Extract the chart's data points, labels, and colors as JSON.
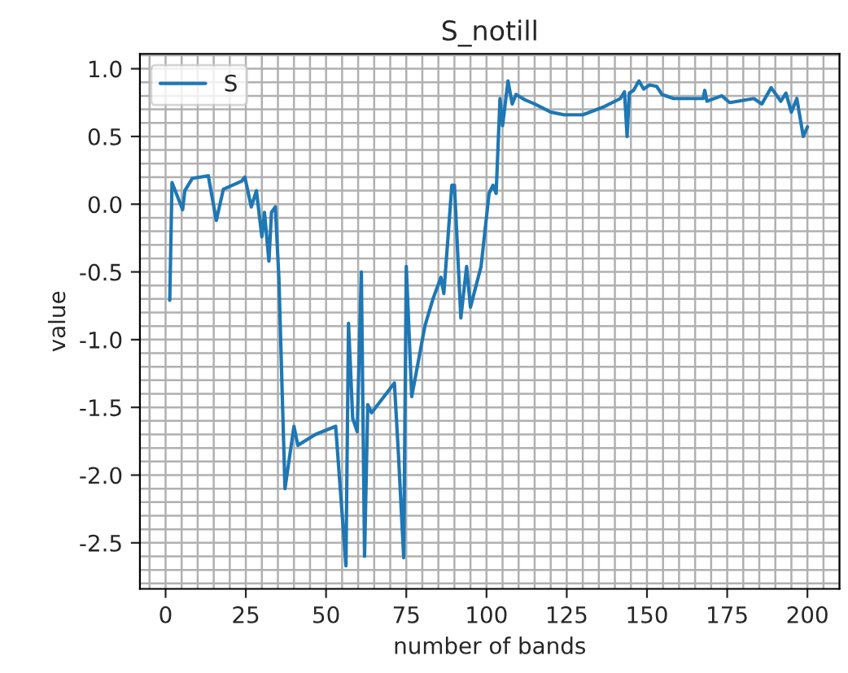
{
  "chart_data": {
    "type": "line",
    "title": "S_notill",
    "xlabel": "number of bands",
    "ylabel": "value",
    "xlim": [
      -8,
      210
    ],
    "ylim": [
      -2.84,
      1.11
    ],
    "xticks": [
      0,
      25,
      50,
      75,
      100,
      125,
      150,
      175,
      200
    ],
    "yticks": [
      -2.5,
      {
        "value": -2,
        "label": "-2.0"
      },
      -1.5,
      {
        "value": -1,
        "label": "-1.0"
      },
      -0.5,
      {
        "value": 0,
        "label": "0.0"
      },
      0.5,
      {
        "value": 1,
        "label": "1.0"
      }
    ],
    "grid": true,
    "legend": "top left",
    "series": [
      {
        "name": "S",
        "color": "#1f77b4",
        "x": [
          1.3,
          2,
          5.3,
          6,
          8.3,
          13.3,
          15.8,
          18,
          23.7,
          24.7,
          26.7,
          28.3,
          30,
          30.8,
          32.2,
          33,
          34.2,
          35.3,
          37.2,
          40,
          41.2,
          46.7,
          53,
          56.2,
          57,
          58.3,
          59.7,
          61,
          62,
          63,
          64.2,
          71.3,
          72.5,
          74.2,
          75,
          76.7,
          80.8,
          83.3,
          85.8,
          86.7,
          89.2,
          90,
          92,
          93.8,
          95,
          98.3,
          100.8,
          102,
          103,
          104.2,
          105,
          106.7,
          108,
          109.2,
          112,
          115,
          120,
          124.2,
          130,
          136.7,
          141.7,
          143,
          143.8,
          144.5,
          145.8,
          147.5,
          149,
          150.8,
          153,
          154.7,
          158.3,
          167.5,
          168,
          168.7,
          173.3,
          175.8,
          183.3,
          185.8,
          188.7,
          191.7,
          193.3,
          195,
          196.7,
          198.7,
          200
        ],
        "values": [
          -0.71,
          0.16,
          -0.04,
          0.1,
          0.19,
          0.21,
          -0.12,
          0.11,
          0.17,
          0.2,
          -0.02,
          0.1,
          -0.24,
          -0.06,
          -0.42,
          -0.06,
          -0.02,
          -0.54,
          -2.1,
          -1.64,
          -1.78,
          -1.7,
          -1.64,
          -2.67,
          -0.88,
          -1.58,
          -1.68,
          -0.5,
          -2.6,
          -1.48,
          -1.54,
          -1.32,
          -1.82,
          -2.61,
          -0.46,
          -1.42,
          -0.9,
          -0.7,
          -0.54,
          -0.66,
          0.14,
          0.14,
          -0.84,
          -0.46,
          -0.76,
          -0.46,
          0.08,
          0.14,
          0.08,
          0.78,
          0.58,
          0.91,
          0.74,
          0.81,
          0.77,
          0.74,
          0.68,
          0.66,
          0.66,
          0.72,
          0.78,
          0.83,
          0.5,
          0.82,
          0.84,
          0.91,
          0.85,
          0.88,
          0.87,
          0.81,
          0.78,
          0.78,
          0.84,
          0.76,
          0.8,
          0.75,
          0.78,
          0.74,
          0.86,
          0.76,
          0.82,
          0.68,
          0.78,
          0.5,
          0.57
        ]
      }
    ]
  }
}
